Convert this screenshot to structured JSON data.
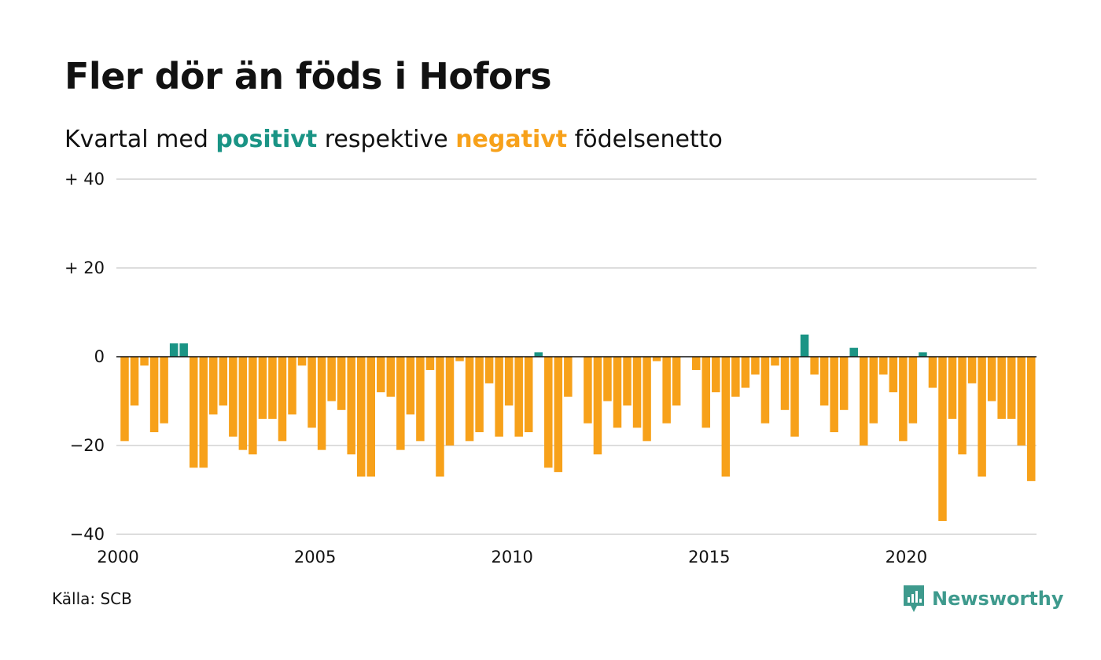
{
  "header": {
    "title": "Fler dör än föds i Hofors",
    "subtitle_pre": "Kvartal med ",
    "subtitle_pos": "positivt",
    "subtitle_mid": " respektive ",
    "subtitle_neg": "negativt",
    "subtitle_post": " födelsenetto"
  },
  "footer": {
    "source": "Källa: SCB",
    "brand": "Newsworthy",
    "brand_icon": "newsworthy-logo-icon"
  },
  "colors": {
    "positive": "#1a9485",
    "negative": "#f7a11a",
    "grid": "#dddddd",
    "zero": "#111111"
  },
  "chart_data": {
    "type": "bar",
    "x_unit": "quarter",
    "x_start": "2000 Q1",
    "ylim": [
      -40,
      40
    ],
    "y_ticks": [
      {
        "value": 40,
        "label": "+ 40"
      },
      {
        "value": 20,
        "label": "+ 20"
      },
      {
        "value": 0,
        "label": "0"
      },
      {
        "value": -20,
        "label": "−20"
      },
      {
        "value": -40,
        "label": "−40"
      }
    ],
    "x_ticks": [
      {
        "value": 2000,
        "label": "2000"
      },
      {
        "value": 2005,
        "label": "2005"
      },
      {
        "value": 2010,
        "label": "2010"
      },
      {
        "value": 2015,
        "label": "2015"
      },
      {
        "value": 2020,
        "label": "2020"
      }
    ],
    "grid": true,
    "values": [
      -19,
      -11,
      -2,
      -17,
      -15,
      3,
      3,
      -25,
      -25,
      -13,
      -11,
      -18,
      -21,
      -22,
      -14,
      -14,
      -19,
      -13,
      -2,
      -16,
      -21,
      -10,
      -12,
      -22,
      -27,
      -27,
      -8,
      -9,
      -21,
      -13,
      -19,
      -3,
      -27,
      -20,
      -1,
      -19,
      -17,
      -6,
      -18,
      -11,
      -18,
      -17,
      1,
      -25,
      -26,
      -9,
      0,
      -15,
      -22,
      -10,
      -16,
      -11,
      -16,
      -19,
      -1,
      -15,
      -11,
      0,
      -3,
      -16,
      -8,
      -27,
      -9,
      -7,
      -4,
      -15,
      -2,
      -12,
      -18,
      5,
      -4,
      -11,
      -17,
      -12,
      2,
      -20,
      -15,
      -4,
      -8,
      -19,
      -15,
      1,
      -7,
      -37,
      -14,
      -22,
      -6,
      -27,
      -10,
      -14,
      -14,
      -20,
      -28
    ]
  }
}
